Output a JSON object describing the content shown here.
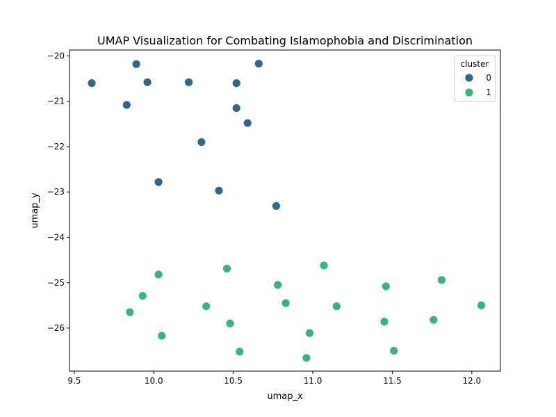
{
  "chart_data": {
    "type": "scatter",
    "title": "UMAP Visualization for Combating Islamophobia and Discrimination",
    "xlabel": "umap_x",
    "ylabel": "umap_y",
    "xlim": [
      9.47,
      12.18
    ],
    "ylim": [
      -26.95,
      -19.87
    ],
    "xticks": [
      9.5,
      10.0,
      10.5,
      11.0,
      11.5,
      12.0
    ],
    "xtick_labels": [
      "9.5",
      "10.0",
      "10.5",
      "11.0",
      "11.5",
      "12.0"
    ],
    "yticks": [
      -20,
      -21,
      -22,
      -23,
      -24,
      -25,
      -26
    ],
    "ytick_labels": [
      "−20",
      "−21",
      "−22",
      "−23",
      "−24",
      "−25",
      "−26"
    ],
    "grid": false,
    "legend": {
      "title": "cluster",
      "placement": "top-right"
    },
    "series": [
      {
        "name": "0",
        "color": "#30678d",
        "points": [
          [
            9.61,
            -20.6
          ],
          [
            9.89,
            -20.18
          ],
          [
            9.96,
            -20.58
          ],
          [
            9.83,
            -21.08
          ],
          [
            10.22,
            -20.58
          ],
          [
            10.52,
            -20.6
          ],
          [
            10.66,
            -20.17
          ],
          [
            10.52,
            -21.15
          ],
          [
            10.59,
            -21.48
          ],
          [
            10.3,
            -21.9
          ],
          [
            10.03,
            -22.78
          ],
          [
            10.41,
            -22.97
          ],
          [
            10.77,
            -23.31
          ]
        ]
      },
      {
        "name": "1",
        "color": "#35b779",
        "points": [
          [
            10.03,
            -24.82
          ],
          [
            9.93,
            -25.29
          ],
          [
            9.85,
            -25.65
          ],
          [
            10.05,
            -26.17
          ],
          [
            10.33,
            -25.52
          ],
          [
            10.46,
            -24.69
          ],
          [
            10.48,
            -25.9
          ],
          [
            10.54,
            -26.52
          ],
          [
            10.78,
            -25.05
          ],
          [
            10.83,
            -25.45
          ],
          [
            11.07,
            -24.62
          ],
          [
            11.15,
            -25.52
          ],
          [
            10.98,
            -26.11
          ],
          [
            10.96,
            -26.66
          ],
          [
            11.46,
            -25.08
          ],
          [
            11.45,
            -25.86
          ],
          [
            11.51,
            -26.5
          ],
          [
            11.76,
            -25.82
          ],
          [
            11.81,
            -24.94
          ],
          [
            12.06,
            -25.5
          ]
        ]
      }
    ]
  }
}
